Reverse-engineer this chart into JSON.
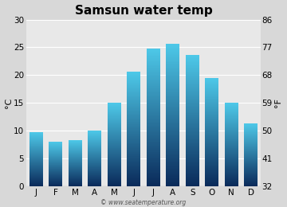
{
  "title": "Samsun water temp",
  "months": [
    "J",
    "F",
    "M",
    "A",
    "M",
    "J",
    "J",
    "A",
    "S",
    "O",
    "N",
    "D"
  ],
  "values_c": [
    9.7,
    8.0,
    8.3,
    10.0,
    15.0,
    20.6,
    24.8,
    25.6,
    23.6,
    19.5,
    15.0,
    11.3
  ],
  "ylabel_left": "°C",
  "ylabel_right": "°F",
  "yticks_c": [
    0,
    5,
    10,
    15,
    20,
    25,
    30
  ],
  "yticks_f": [
    32,
    41,
    50,
    59,
    68,
    77,
    86
  ],
  "ylim": [
    0,
    30
  ],
  "bar_color_top": "#4dc8e8",
  "bar_color_bottom": "#0a2a5a",
  "background_color": "#d8d8d8",
  "plot_bg_color": "#e8e8e8",
  "watermark": "© www.seatemperature.org",
  "title_fontsize": 11,
  "tick_fontsize": 7.5,
  "label_fontsize": 8,
  "bar_width": 0.7
}
